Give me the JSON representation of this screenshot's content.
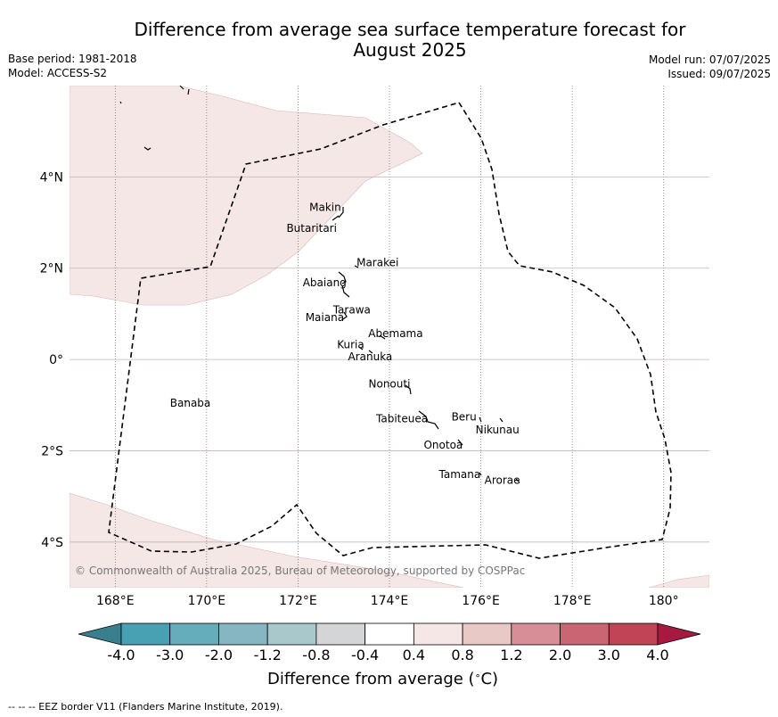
{
  "title": {
    "line1": "Difference from average sea surface temperature forecast for",
    "line2": "August 2025"
  },
  "meta_left": {
    "base_period": "Base period: 1981-2018",
    "model": "Model: ACCESS-S2"
  },
  "meta_right": {
    "model_run": "Model run: 07/07/2025",
    "issued": "Issued: 09/07/2025"
  },
  "map": {
    "lon_range": [
      167,
      181
    ],
    "lat_range": [
      -5,
      6
    ],
    "lon_ticks": [
      {
        "value": 168,
        "label": "168°E"
      },
      {
        "value": 170,
        "label": "170°E"
      },
      {
        "value": 172,
        "label": "172°E"
      },
      {
        "value": 174,
        "label": "174°E"
      },
      {
        "value": 176,
        "label": "176°E"
      },
      {
        "value": 178,
        "label": "178°E"
      },
      {
        "value": 180,
        "label": "180°"
      }
    ],
    "lat_ticks": [
      {
        "value": 4,
        "label": "4°N"
      },
      {
        "value": 2,
        "label": "2°N"
      },
      {
        "value": 0,
        "label": "0°"
      },
      {
        "value": -2,
        "label": "2°S"
      },
      {
        "value": -4,
        "label": "4°S"
      }
    ],
    "background_anomaly_color": "#ffffff",
    "shaded_anomaly_color": "#f5e7e6",
    "copyright": "© Commonwealth of Australia 2025, Bureau of Meteorology, supported by COSPPac",
    "islands": [
      {
        "name": "Makin",
        "lon": 172.95,
        "lat": 3.2
      },
      {
        "name": "Butaritari",
        "lon": 172.8,
        "lat": 2.95
      },
      {
        "name": "Marakei",
        "lon": 173.3,
        "lat": 2.0
      },
      {
        "name": "Abaiang",
        "lon": 173.0,
        "lat": 1.8
      },
      {
        "name": "Tarawa",
        "lon": 173.0,
        "lat": 1.4
      },
      {
        "name": "Maiana",
        "lon": 173.0,
        "lat": 1.0
      },
      {
        "name": "Abemama",
        "lon": 173.85,
        "lat": 0.45
      },
      {
        "name": "Kuria",
        "lon": 173.4,
        "lat": 0.25
      },
      {
        "name": "Aranuka",
        "lon": 173.6,
        "lat": 0.2
      },
      {
        "name": "Nonouti",
        "lon": 174.4,
        "lat": -0.65
      },
      {
        "name": "Banaba",
        "lon": 169.55,
        "lat": -0.9
      },
      {
        "name": "Tabiteuea",
        "lon": 174.8,
        "lat": -1.3
      },
      {
        "name": "Beru",
        "lon": 176.0,
        "lat": -1.3
      },
      {
        "name": "Nikunau",
        "lon": 176.45,
        "lat": -1.35
      },
      {
        "name": "Onotoa",
        "lon": 175.55,
        "lat": -1.8
      },
      {
        "name": "Tamana",
        "lon": 175.98,
        "lat": -2.5
      },
      {
        "name": "Arorae",
        "lon": 176.82,
        "lat": -2.65
      }
    ]
  },
  "colorbar": {
    "title": "Difference from average (",
    "title_unit": "C)",
    "degree_symbol": "∘",
    "tick_labels": [
      "-4.0",
      "-3.0",
      "-2.0",
      "-1.2",
      "-0.8",
      "-0.4",
      "0.4",
      "0.8",
      "1.2",
      "2.0",
      "3.0",
      "4.0"
    ],
    "under_color": "#3a7f8d",
    "over_color": "#a51a3e",
    "colors": [
      "#47a1b2",
      "#65adbb",
      "#86b6c1",
      "#a8c8cc",
      "#d3d5d6",
      "#ffffff",
      "#f5e7e6",
      "#e9c9c6",
      "#d88e96",
      "#ca6573",
      "#c04456"
    ]
  },
  "footer": "--  --  -- EEZ border V11 (Flanders Marine Institute, 2019)."
}
